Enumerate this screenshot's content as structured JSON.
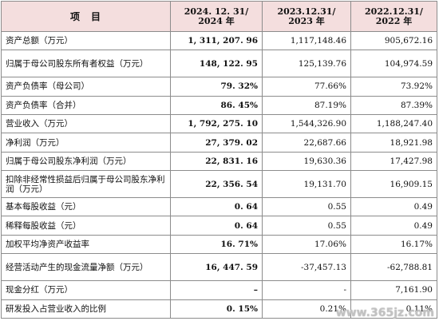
{
  "header": {
    "item": "项目",
    "col1": "2024. 12. 31/ 2024 年",
    "col2": "2023.12.31/ 2023 年",
    "col3": "2022.12.31/ 2022 年"
  },
  "rows": [
    {
      "label": "资产总额（万元）",
      "v1": "1, 311, 207. 96",
      "v2": "1,117,148.46",
      "v3": "905,672.16"
    },
    {
      "label": "归属于母公司股东所有者权益（万元）",
      "v1": "148, 122. 95",
      "v2": "125,139.76",
      "v3": "104,974.59"
    },
    {
      "label": "资产负债率（母公司）",
      "v1": "79. 32%",
      "v2": "77.66%",
      "v3": "73.92%"
    },
    {
      "label": "资产负债率（合并）",
      "v1": "86. 45%",
      "v2": "87.19%",
      "v3": "87.39%"
    },
    {
      "label": "营业收入（万元）",
      "v1": "1, 792, 275. 10",
      "v2": "1,544,326.90",
      "v3": "1,188,247.40"
    },
    {
      "label": "净利润（万元）",
      "v1": "27, 379. 02",
      "v2": "22,687.66",
      "v3": "18,921.98"
    },
    {
      "label": "归属于母公司股东净利润（万元）",
      "v1": "22, 831. 16",
      "v2": "19,630.36",
      "v3": "17,427.98"
    },
    {
      "label": "扣除非经常性损益后归属于母公司股东净利润（万元）",
      "v1": "22, 356. 54",
      "v2": "19,131.70",
      "v3": "16,909.15"
    },
    {
      "label": "基本每股收益（元）",
      "v1": "0. 64",
      "v2": "0.55",
      "v3": "0.49"
    },
    {
      "label": "稀释每股收益（元）",
      "v1": "0. 64",
      "v2": "0.55",
      "v3": "0.49"
    },
    {
      "label": "加权平均净资产收益率",
      "v1": "16. 71%",
      "v2": "17.06%",
      "v3": "16.17%"
    },
    {
      "label": "经营活动产生的现金流量净额（万元）",
      "v1": "16, 447. 59",
      "v2": "-37,457.13",
      "v3": "-62,788.81"
    },
    {
      "label": "现金分红（万元）",
      "v1": "–",
      "v2": "-",
      "v3": "7,161.90"
    },
    {
      "label": "研发投入占营业收入的比例",
      "v1": "0. 15%",
      "v2": "0.21%",
      "v3": "0.11%"
    }
  ],
  "watermark": "www.365jz.com"
}
